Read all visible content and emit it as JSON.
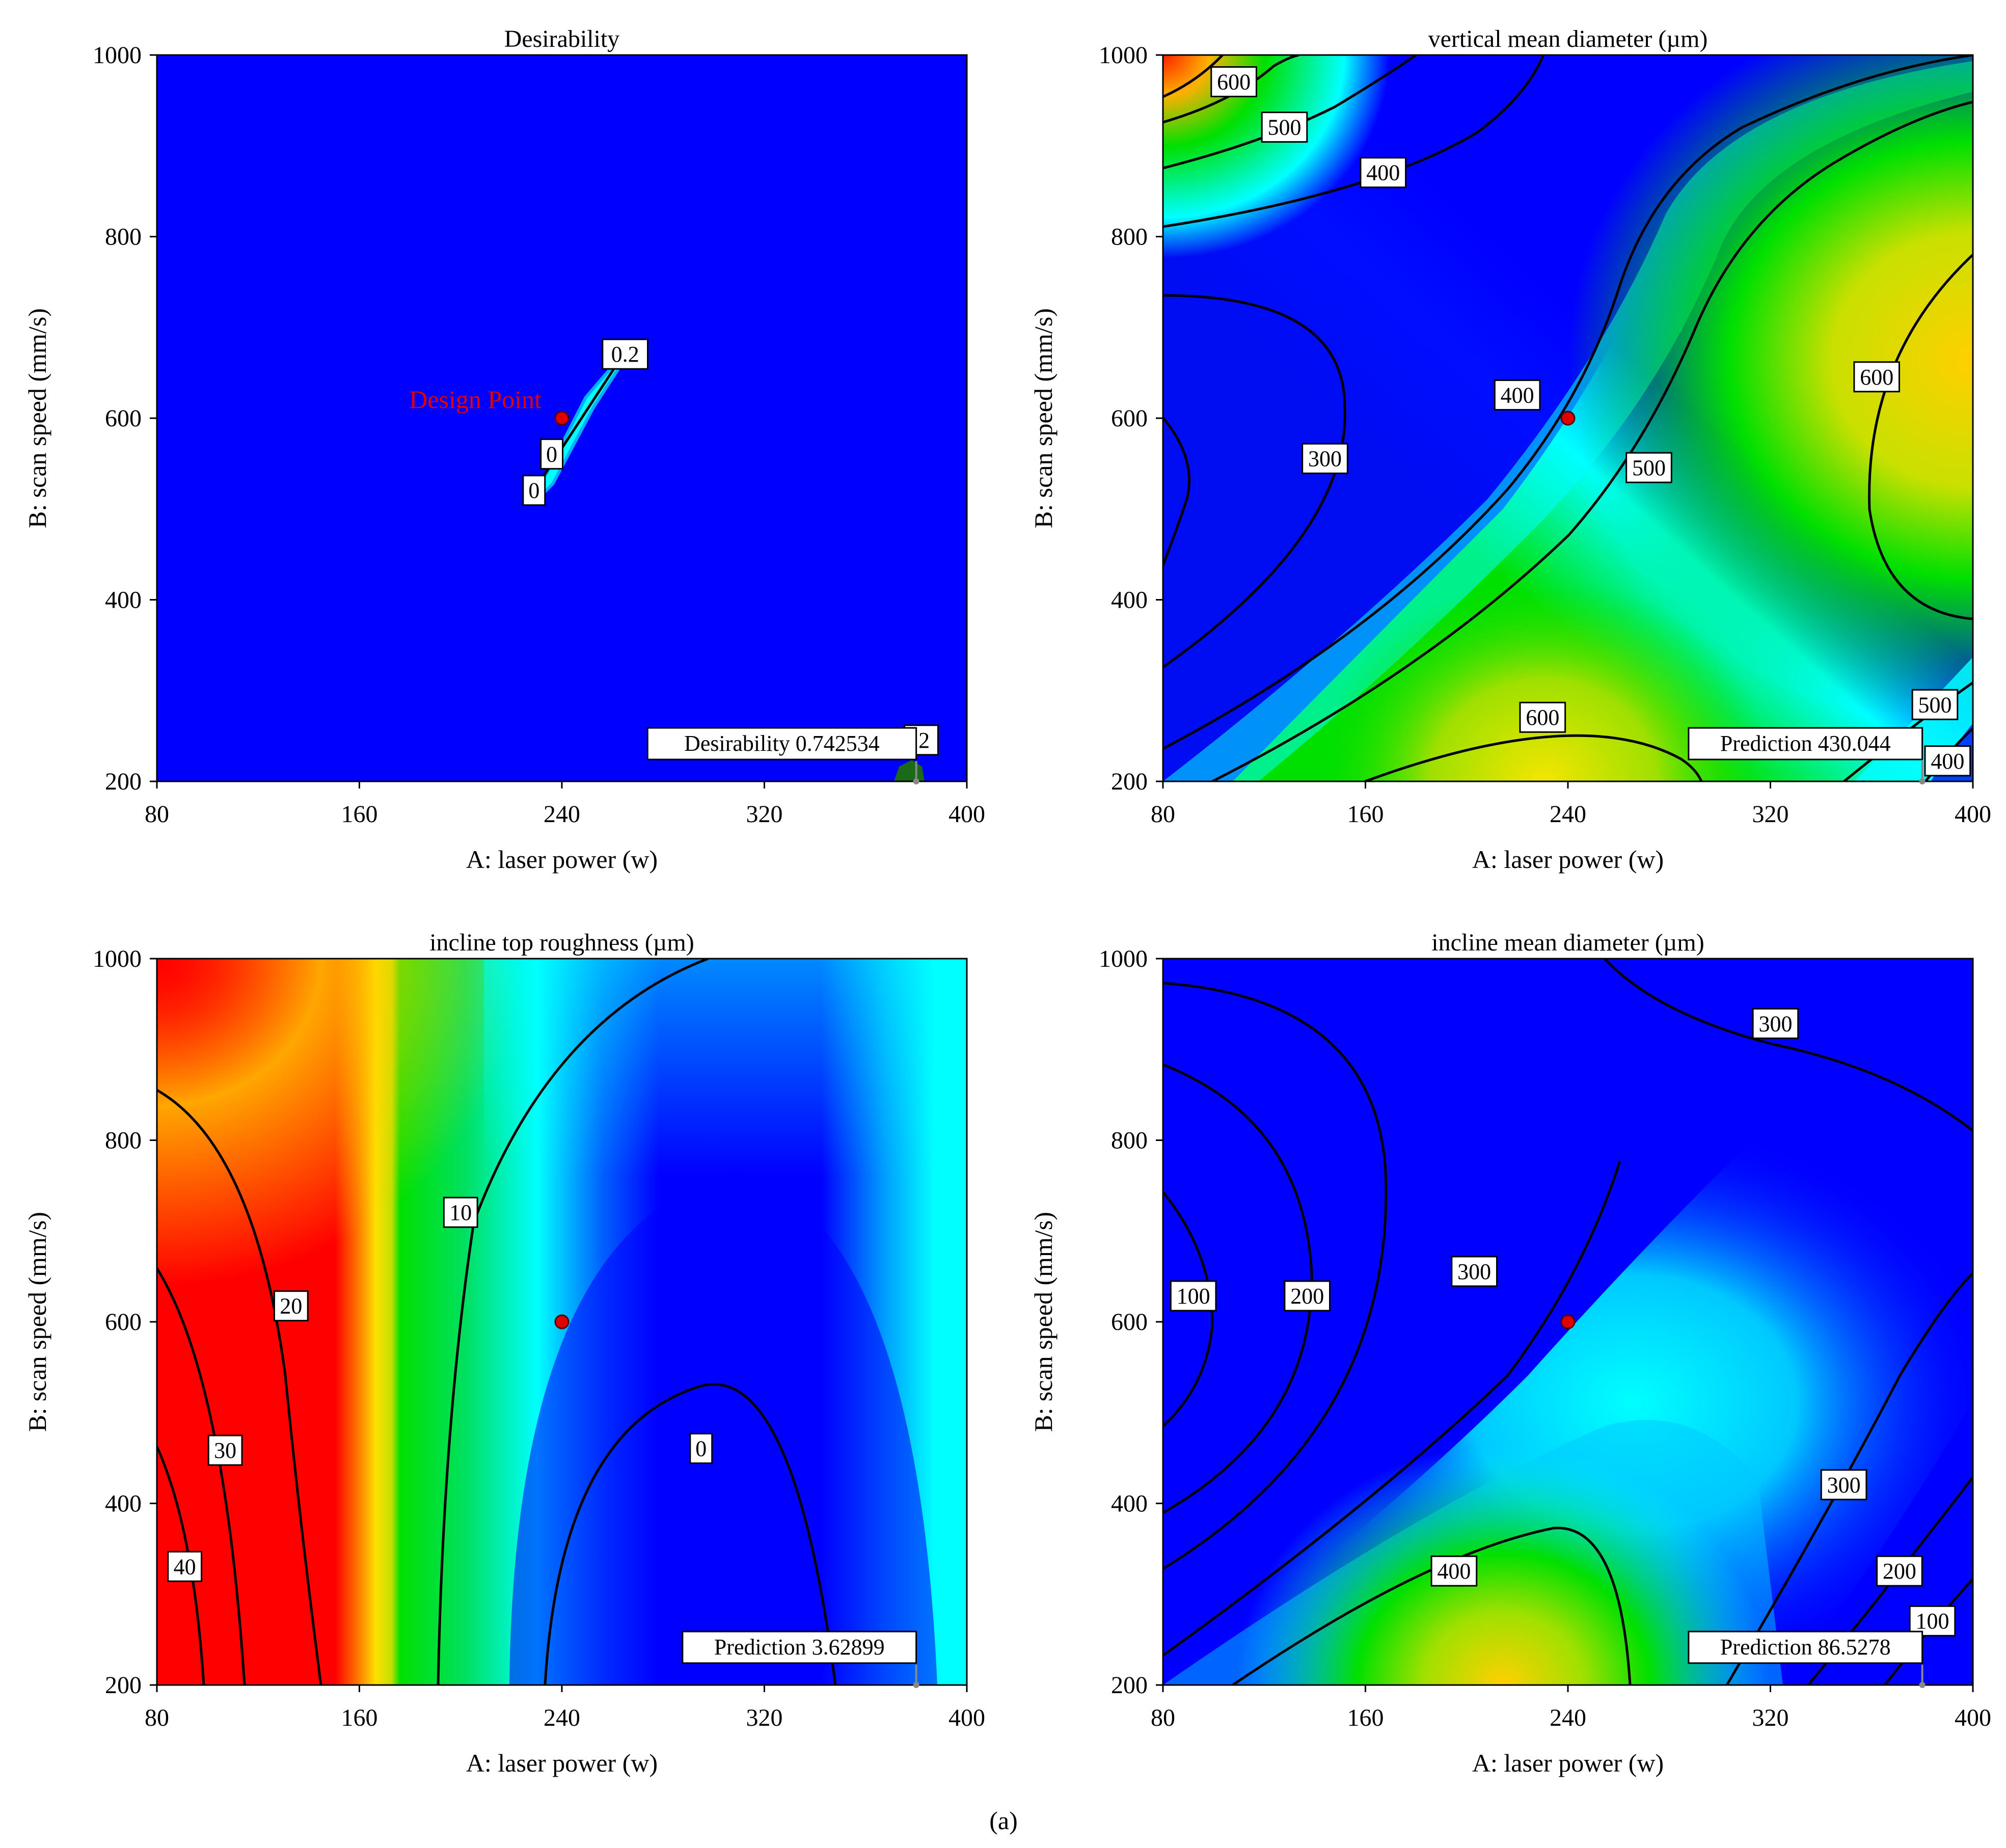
{
  "figure_caption": "(a)",
  "chart_data": [
    {
      "type": "heatmap",
      "title": "Desirability",
      "xlabel": "A: laser power (w)",
      "ylabel": "B: scan speed (mm/s)",
      "xlim": [
        80,
        400
      ],
      "ylim": [
        200,
        1000
      ],
      "x_ticks": [
        "80",
        "160",
        "240",
        "320",
        "400"
      ],
      "y_ticks": [
        "200",
        "400",
        "600",
        "800",
        "1000"
      ],
      "contour_labels": [
        {
          "text": "0.2",
          "x": 265,
          "y": 670
        },
        {
          "text": "0",
          "x": 236,
          "y": 560
        },
        {
          "text": "0",
          "x": 229,
          "y": 520
        },
        {
          "text": ".2",
          "x": 382,
          "y": 245
        }
      ],
      "design_point": {
        "label": "Design Point",
        "x": 240,
        "y": 600
      },
      "flag": {
        "name": "Desirability",
        "value": "0.742534",
        "x": 380,
        "y": 200
      }
    },
    {
      "type": "heatmap",
      "title": "vertical mean diameter (µm)",
      "xlabel": "A: laser power (w)",
      "ylabel": "B: scan speed (mm/s)",
      "xlim": [
        80,
        400
      ],
      "ylim": [
        200,
        1000
      ],
      "x_ticks": [
        "80",
        "160",
        "240",
        "320",
        "400"
      ],
      "y_ticks": [
        "200",
        "400",
        "600",
        "800",
        "1000"
      ],
      "contour_labels": [
        {
          "text": "600",
          "x": 108,
          "y": 970
        },
        {
          "text": "500",
          "x": 128,
          "y": 920
        },
        {
          "text": "400",
          "x": 167,
          "y": 870
        },
        {
          "text": "400",
          "x": 220,
          "y": 625
        },
        {
          "text": "300",
          "x": 144,
          "y": 555
        },
        {
          "text": "500",
          "x": 272,
          "y": 545
        },
        {
          "text": "600",
          "x": 362,
          "y": 645
        },
        {
          "text": "600",
          "x": 230,
          "y": 270
        },
        {
          "text": "500",
          "x": 385,
          "y": 284
        },
        {
          "text": "400",
          "x": 390,
          "y": 222
        }
      ],
      "design_point": {
        "label": "",
        "x": 240,
        "y": 600
      },
      "flag": {
        "name": "Prediction",
        "value": "430.044",
        "x": 380,
        "y": 200
      }
    },
    {
      "type": "heatmap",
      "title": "incline  top roughness (µm)",
      "xlabel": "A: laser power (w)",
      "ylabel": "B: scan speed (mm/s)",
      "xlim": [
        80,
        400
      ],
      "ylim": [
        200,
        1000
      ],
      "x_ticks": [
        "80",
        "160",
        "240",
        "320",
        "400"
      ],
      "y_ticks": [
        "200",
        "400",
        "600",
        "800",
        "1000"
      ],
      "contour_labels": [
        {
          "text": "10",
          "x": 200,
          "y": 720
        },
        {
          "text": "20",
          "x": 133,
          "y": 617
        },
        {
          "text": "30",
          "x": 107,
          "y": 458
        },
        {
          "text": "40",
          "x": 91,
          "y": 330
        },
        {
          "text": "0",
          "x": 295,
          "y": 460
        }
      ],
      "design_point": {
        "label": "",
        "x": 240,
        "y": 600
      },
      "flag": {
        "name": "Prediction",
        "value": "3.62899",
        "x": 380,
        "y": 200
      }
    },
    {
      "type": "heatmap",
      "title": "incline mean diameter (µm)",
      "xlabel": "A: laser power (w)",
      "ylabel": "B: scan speed (mm/s)",
      "xlim": [
        80,
        400
      ],
      "ylim": [
        200,
        1000
      ],
      "x_ticks": [
        "80",
        "160",
        "240",
        "320",
        "400"
      ],
      "y_ticks": [
        "200",
        "400",
        "600",
        "800",
        "1000"
      ],
      "contour_labels": [
        {
          "text": "300",
          "x": 322,
          "y": 928
        },
        {
          "text": "100",
          "x": 92,
          "y": 628
        },
        {
          "text": "200",
          "x": 137,
          "y": 628
        },
        {
          "text": "300",
          "x": 203,
          "y": 655
        },
        {
          "text": "300",
          "x": 349,
          "y": 420
        },
        {
          "text": "400",
          "x": 195,
          "y": 325
        },
        {
          "text": "200",
          "x": 371,
          "y": 325
        },
        {
          "text": "100",
          "x": 384,
          "y": 270
        }
      ],
      "design_point": {
        "label": "",
        "x": 240,
        "y": 600
      },
      "flag": {
        "name": "Prediction",
        "value": "86.5278",
        "x": 380,
        "y": 200
      }
    }
  ]
}
